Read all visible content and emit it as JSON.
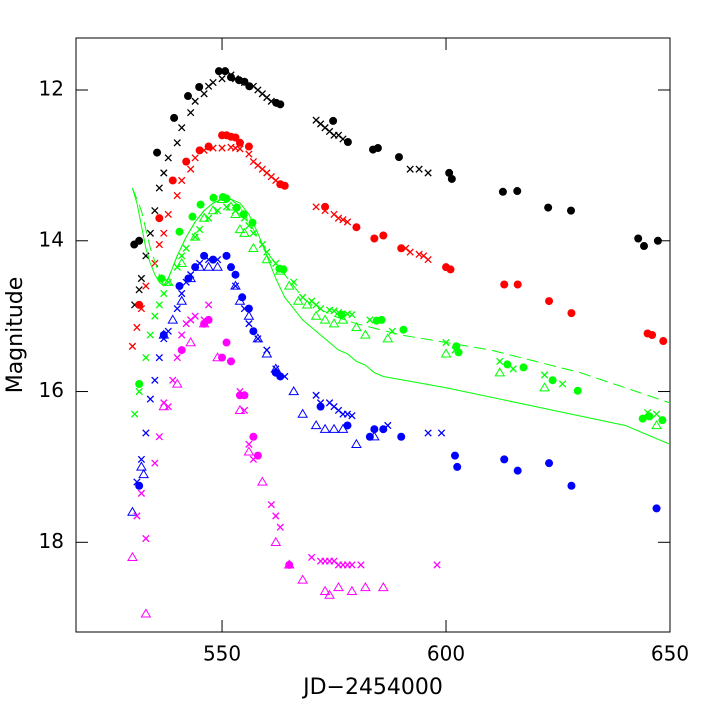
{
  "chart_data": {
    "type": "scatter",
    "xlabel": "JD−2454000",
    "ylabel": "Magnitude",
    "xlim": [
      517.4,
      650
    ],
    "ylim": [
      19.19,
      11.31
    ],
    "xticks": [
      550,
      600,
      650
    ],
    "yticks": [
      12,
      14,
      16,
      18
    ],
    "series": [
      {
        "marker": "circle",
        "color": "#000000",
        "x": [
          530.4,
          531.5,
          535.5,
          539.3,
          542.4,
          544.9,
          549.3,
          550.7,
          552.0,
          553.8,
          555.0,
          556.1,
          562.1,
          563.0,
          574.8,
          578.1,
          583.7,
          584.8,
          589.5,
          600.7,
          601.3,
          612.7,
          615.9,
          622.8,
          627.9,
          642.9,
          644.2,
          647.3
        ],
        "values": [
          14.05,
          14.0,
          12.83,
          12.37,
          12.08,
          11.96,
          11.75,
          11.75,
          11.83,
          11.87,
          11.89,
          11.95,
          12.17,
          12.19,
          12.41,
          12.69,
          12.79,
          12.77,
          12.89,
          13.1,
          13.18,
          13.35,
          13.34,
          13.56,
          13.6,
          13.97,
          14.07,
          14.0
        ]
      },
      {
        "marker": "cross",
        "color": "#000000",
        "x": [
          530.5,
          531.5,
          532,
          533,
          534,
          535,
          536,
          537,
          538,
          540,
          541,
          543,
          544,
          546,
          547,
          548,
          550,
          552,
          553,
          555,
          557,
          558,
          559,
          560,
          561,
          571,
          572,
          573,
          574,
          575,
          576,
          577,
          592,
          594,
          596
        ],
        "values": [
          14.85,
          14.65,
          14.5,
          14.2,
          13.9,
          13.6,
          13.3,
          13.1,
          12.9,
          12.7,
          12.5,
          12.3,
          12.15,
          12.05,
          11.95,
          11.9,
          11.85,
          11.8,
          11.85,
          11.9,
          11.95,
          12.0,
          12.05,
          12.1,
          12.15,
          12.4,
          12.45,
          12.5,
          12.55,
          12.6,
          12.6,
          12.65,
          13.05,
          13.05,
          13.1
        ]
      },
      {
        "marker": "circle",
        "color": "#ff0000",
        "x": [
          531.5,
          536,
          539,
          542,
          545,
          547,
          550,
          551,
          552,
          553,
          554,
          556,
          563,
          564,
          573,
          580,
          584,
          586,
          590,
          600,
          601,
          613,
          616,
          623,
          628,
          645,
          646,
          648.5
        ],
        "values": [
          14.85,
          13.7,
          13.2,
          12.95,
          12.8,
          12.75,
          12.6,
          12.6,
          12.62,
          12.63,
          12.7,
          12.75,
          13.25,
          13.27,
          13.55,
          13.82,
          13.97,
          13.93,
          14.1,
          14.35,
          14.38,
          14.58,
          14.58,
          14.8,
          14.96,
          15.23,
          15.25,
          15.33
        ]
      },
      {
        "marker": "cross",
        "color": "#ff0000",
        "x": [
          530,
          531,
          532,
          533,
          535,
          536,
          537,
          538,
          540,
          541,
          543,
          544,
          546,
          548,
          550,
          552,
          553,
          554,
          556,
          557,
          558,
          559,
          560,
          561,
          562,
          571,
          573,
          575,
          576,
          577,
          578,
          591,
          592,
          594,
          595,
          596
        ],
        "values": [
          15.4,
          15.15,
          14.9,
          14.6,
          14.3,
          14.05,
          13.9,
          13.65,
          13.4,
          13.2,
          13.05,
          12.9,
          12.8,
          12.77,
          12.77,
          12.76,
          12.77,
          12.78,
          12.85,
          12.95,
          13.0,
          13.05,
          13.1,
          13.15,
          13.2,
          13.55,
          13.6,
          13.65,
          13.7,
          13.72,
          13.75,
          14.1,
          14.15,
          14.18,
          14.2,
          14.25
        ]
      },
      {
        "marker": "circle",
        "color": "#00ff00",
        "x": [
          531.5,
          536.5,
          540.5,
          543.4,
          545.2,
          548.1,
          550.2,
          551,
          553.3,
          554.8,
          556.8,
          562.8,
          563.7,
          576.7,
          584.5,
          585.6,
          590.5,
          602.3,
          602.8,
          613.7,
          617.3,
          623.8,
          629.4,
          643.9,
          645.4,
          648.3
        ],
        "values": [
          15.9,
          14.5,
          13.88,
          13.68,
          13.52,
          13.43,
          13.42,
          13.44,
          13.56,
          13.65,
          13.76,
          14.37,
          14.38,
          14.98,
          15.06,
          15.05,
          15.18,
          15.4,
          15.48,
          15.64,
          15.68,
          15.85,
          15.99,
          16.36,
          16.33,
          16.38
        ]
      },
      {
        "marker": "cross",
        "color": "#00ff00",
        "x": [
          530.5,
          531.5,
          533,
          534,
          535,
          536,
          537,
          538,
          540,
          541,
          542,
          544,
          545,
          547,
          549,
          551,
          553,
          555,
          556,
          557,
          559,
          560,
          562,
          566,
          568,
          570,
          571,
          572,
          574,
          575,
          576,
          578,
          579,
          583,
          588,
          600,
          602,
          612,
          615,
          622,
          626,
          645,
          647
        ],
        "values": [
          16.3,
          16.0,
          15.55,
          15.25,
          15.0,
          14.85,
          14.7,
          14.55,
          14.35,
          14.2,
          14.1,
          13.95,
          13.85,
          13.7,
          13.6,
          13.55,
          13.6,
          13.7,
          13.8,
          13.9,
          14.05,
          14.15,
          14.3,
          14.55,
          14.75,
          14.8,
          14.85,
          14.9,
          14.92,
          14.93,
          14.95,
          14.97,
          14.98,
          15.05,
          15.2,
          15.35,
          15.45,
          15.6,
          15.7,
          15.78,
          15.9,
          16.28,
          16.3
        ]
      },
      {
        "marker": "triangle",
        "color": "#00ff00",
        "x": [
          538,
          541,
          544,
          546,
          548,
          550,
          552,
          553,
          554,
          555,
          557,
          560,
          563,
          565,
          567,
          569,
          571,
          573,
          575,
          577,
          580,
          582,
          587,
          600,
          612,
          622,
          647
        ],
        "values": [
          14.55,
          14.3,
          13.95,
          13.7,
          13.6,
          13.45,
          13.55,
          13.65,
          13.85,
          13.9,
          14.1,
          14.25,
          14.4,
          14.6,
          14.8,
          14.85,
          15.0,
          15.05,
          15.1,
          15.05,
          15.15,
          15.25,
          15.3,
          15.5,
          15.75,
          15.95,
          16.45
        ]
      },
      {
        "marker": "line",
        "color": "#00ff00",
        "dashed": false,
        "x": [
          530,
          531,
          532,
          533,
          534,
          535,
          536,
          537,
          538,
          540,
          542,
          544,
          546,
          548,
          550,
          552,
          554,
          556,
          558,
          560,
          562,
          564,
          566,
          568,
          570,
          572,
          574,
          576,
          578,
          580,
          582,
          584,
          586,
          600,
          620,
          640,
          650
        ],
        "values": [
          13.3,
          13.5,
          13.8,
          14.1,
          14.3,
          14.45,
          14.55,
          14.6,
          14.5,
          14.2,
          13.95,
          13.75,
          13.6,
          13.5,
          13.45,
          13.45,
          13.5,
          13.65,
          13.9,
          14.2,
          14.5,
          14.75,
          14.9,
          15.05,
          15.15,
          15.25,
          15.35,
          15.45,
          15.5,
          15.6,
          15.65,
          15.75,
          15.8,
          15.95,
          16.2,
          16.45,
          16.7
        ]
      },
      {
        "marker": "line",
        "color": "#00ff00",
        "dashed": true,
        "x": [
          530,
          532,
          534,
          536,
          537,
          538,
          540,
          542,
          544,
          546,
          548,
          550,
          552,
          554,
          556,
          558,
          560,
          562,
          564,
          566,
          568,
          570,
          575,
          580,
          590,
          600,
          610,
          620,
          630,
          640,
          650
        ],
        "values": [
          13.3,
          13.6,
          14.1,
          14.45,
          14.6,
          14.5,
          14.2,
          13.95,
          13.75,
          13.6,
          13.5,
          13.45,
          13.45,
          13.55,
          13.75,
          13.95,
          14.15,
          14.3,
          14.45,
          14.6,
          14.75,
          14.85,
          15.0,
          15.1,
          15.25,
          15.35,
          15.45,
          15.6,
          15.75,
          15.95,
          16.15
        ]
      },
      {
        "marker": "circle",
        "color": "#0000ff",
        "x": [
          531.5,
          537,
          540.5,
          542.5,
          544,
          546,
          548,
          551,
          552,
          553,
          554.5,
          556,
          557,
          562,
          563,
          572,
          578,
          583,
          584,
          586,
          590,
          602,
          602.5,
          613,
          616,
          623,
          628,
          647
        ],
        "values": [
          17.25,
          15.25,
          14.6,
          14.5,
          14.35,
          14.2,
          14.25,
          14.2,
          14.35,
          14.45,
          14.75,
          14.9,
          15.2,
          15.75,
          15.8,
          16.2,
          16.45,
          16.6,
          16.5,
          16.5,
          16.6,
          16.85,
          17.0,
          16.9,
          17.05,
          16.95,
          17.25,
          17.55
        ]
      },
      {
        "marker": "cross",
        "color": "#0000ff",
        "x": [
          531,
          532,
          533,
          534,
          535,
          536,
          537,
          538,
          540,
          541,
          542,
          543,
          545,
          547,
          549,
          553,
          555,
          556,
          558,
          560,
          562,
          564,
          571,
          572,
          574,
          575,
          576,
          577,
          578,
          579,
          587,
          596,
          599
        ],
        "values": [
          17.2,
          16.9,
          16.55,
          16.1,
          15.85,
          15.55,
          15.3,
          15.2,
          14.9,
          14.7,
          14.55,
          14.45,
          14.3,
          14.25,
          14.25,
          14.6,
          14.9,
          15.1,
          15.3,
          15.45,
          15.7,
          15.8,
          16.05,
          16.15,
          16.15,
          16.2,
          16.25,
          16.3,
          16.3,
          16.32,
          16.45,
          16.55,
          16.55
        ]
      },
      {
        "marker": "triangle",
        "color": "#0000ff",
        "x": [
          530,
          532,
          532.5,
          537,
          539,
          541,
          543,
          545,
          547,
          549,
          553,
          554,
          556,
          558,
          560,
          562,
          566,
          568,
          571,
          573,
          575,
          577,
          580,
          584
        ],
        "values": [
          17.6,
          17.0,
          17.1,
          15.25,
          15.05,
          14.8,
          14.5,
          14.35,
          14.35,
          14.35,
          14.6,
          14.8,
          15.0,
          15.3,
          15.5,
          15.7,
          16.0,
          16.3,
          16.45,
          16.5,
          16.5,
          16.5,
          16.7,
          16.6
        ]
      },
      {
        "marker": "circle",
        "color": "#ff00ff",
        "x": [
          541,
          546,
          547,
          550,
          551,
          552,
          554,
          555,
          557,
          558,
          565
        ],
        "values": [
          15.45,
          15.1,
          15.05,
          15.55,
          15.35,
          15.6,
          16.05,
          16.05,
          16.6,
          16.85,
          18.3
        ]
      },
      {
        "marker": "cross",
        "color": "#ff00ff",
        "x": [
          531,
          532,
          533,
          535,
          536,
          537,
          538,
          539,
          540,
          541,
          542,
          543,
          544,
          546,
          547,
          554,
          555,
          556,
          557,
          561,
          562,
          563,
          570,
          572,
          573,
          574,
          575,
          576,
          577,
          578,
          579,
          581,
          598
        ],
        "values": [
          17.65,
          17.35,
          17.95,
          16.95,
          16.6,
          16.15,
          16.2,
          15.85,
          15.55,
          15.25,
          15.1,
          15.05,
          15.0,
          15.05,
          14.85,
          16.0,
          16.25,
          16.7,
          16.9,
          17.5,
          17.65,
          17.8,
          18.2,
          18.25,
          18.25,
          18.25,
          18.25,
          18.3,
          18.3,
          18.3,
          18.3,
          18.3,
          18.3
        ]
      },
      {
        "marker": "triangle",
        "color": "#ff00ff",
        "x": [
          530,
          533,
          537,
          540,
          543,
          546,
          549,
          554,
          556,
          559,
          562,
          565,
          568,
          573,
          574,
          576,
          579,
          582,
          586
        ],
        "values": [
          18.2,
          18.95,
          16.2,
          15.9,
          15.35,
          15.1,
          15.55,
          16.25,
          16.8,
          17.2,
          18.0,
          18.3,
          18.5,
          18.65,
          18.7,
          18.6,
          18.65,
          18.6,
          18.6
        ]
      }
    ]
  }
}
